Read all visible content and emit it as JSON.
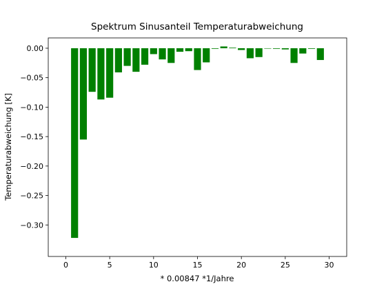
{
  "chart_data": {
    "type": "bar",
    "title": "Spektrum Sinusanteil Temperaturabweichung",
    "xlabel": "* 0.00847  *1/Jahre",
    "ylabel": "Temperaturabweichung [K]",
    "xlim": [
      -2,
      32
    ],
    "ylim": [
      -0.3535,
      0.0175
    ],
    "xticks": [
      0,
      5,
      10,
      15,
      20,
      25,
      30
    ],
    "yticks": [
      0.0,
      -0.05,
      -0.1,
      -0.15,
      -0.2,
      -0.25,
      -0.3
    ],
    "ytick_labels": [
      "0.00",
      "−0.05",
      "−0.10",
      "−0.15",
      "−0.20",
      "−0.25",
      "−0.30"
    ],
    "grid": false,
    "bar_color": "#008000",
    "bar_width": 0.8,
    "x": [
      1,
      2,
      3,
      4,
      5,
      6,
      7,
      8,
      9,
      10,
      11,
      12,
      13,
      14,
      15,
      16,
      17,
      18,
      19,
      20,
      21,
      22,
      23,
      24,
      25,
      26,
      27,
      28,
      29
    ],
    "values": [
      -0.322,
      -0.155,
      -0.074,
      -0.087,
      -0.084,
      -0.041,
      -0.03,
      -0.04,
      -0.028,
      -0.01,
      -0.019,
      -0.025,
      -0.006,
      -0.005,
      -0.037,
      -0.024,
      -0.001,
      0.003,
      0.001,
      -0.003,
      -0.017,
      -0.015,
      0.0,
      -0.001,
      -0.002,
      -0.025,
      -0.009,
      -0.001,
      -0.02
    ]
  }
}
